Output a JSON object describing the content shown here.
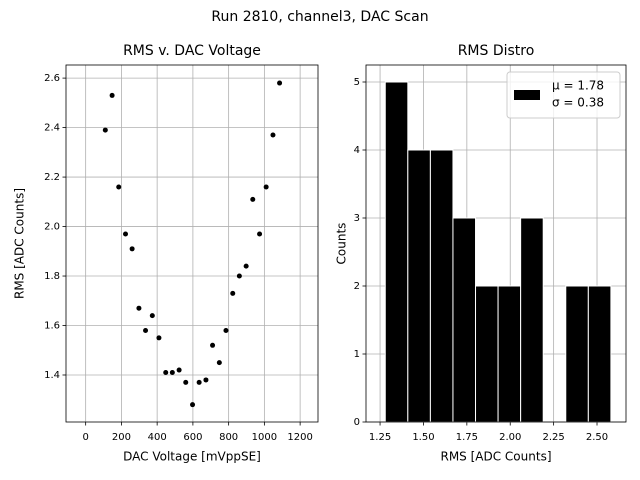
{
  "title": "Run 2810, channel3, DAC Scan",
  "chart_data": [
    {
      "type": "scatter",
      "title": "RMS v. DAC Voltage",
      "x_label": "DAC Voltage [mVppSE]",
      "y_label": "RMS [ADC Counts]",
      "color": "#000000",
      "x": [
        110,
        148,
        185,
        223,
        260,
        298,
        335,
        373,
        410,
        448,
        485,
        523,
        560,
        598,
        635,
        673,
        710,
        748,
        785,
        823,
        860,
        898,
        935,
        973,
        1010,
        1048,
        1085
      ],
      "values": [
        2.39,
        2.53,
        2.16,
        1.97,
        1.91,
        1.67,
        1.58,
        1.64,
        1.55,
        1.41,
        1.41,
        1.42,
        1.37,
        1.28,
        1.37,
        1.38,
        1.52,
        1.45,
        1.58,
        1.73,
        1.8,
        1.84,
        2.11,
        1.97,
        2.16,
        2.37,
        2.58
      ],
      "xlim": [
        -110,
        1300
      ],
      "xticks": [
        0,
        200,
        400,
        600,
        800,
        1000,
        1200
      ],
      "ylim": [
        1.21,
        2.653
      ],
      "yticks": [
        1.4,
        1.6,
        1.8,
        {
          "value": 2.0,
          "label": "2.0"
        },
        2.2,
        2.4,
        2.6
      ],
      "grid": true
    },
    {
      "type": "histogram",
      "title": "RMS Distro",
      "x_label": "RMS [ADC Counts]",
      "y_label": "Counts",
      "color": "#000000",
      "edge_color": "#ffffff",
      "bins": [
        1.28,
        1.41,
        1.54,
        1.67,
        1.8,
        1.93,
        2.06,
        2.19,
        2.32,
        2.45,
        2.58
      ],
      "values": [
        5,
        4,
        4,
        3,
        2,
        2,
        3,
        0,
        2,
        2
      ],
      "legend": [
        "μ = 1.78",
        "σ = 0.38"
      ],
      "legend_corner": "upper right",
      "xlim": [
        1.169,
        2.667
      ],
      "xticks": [
        1.25,
        {
          "value": 1.5,
          "label": "1.50"
        },
        1.75,
        {
          "value": 2.0,
          "label": "2.00"
        },
        2.25,
        {
          "value": 2.5,
          "label": "2.50"
        }
      ],
      "ylim": [
        0,
        5.25
      ],
      "yticks": [
        0,
        1,
        2,
        3,
        4,
        5
      ],
      "grid": true
    }
  ]
}
